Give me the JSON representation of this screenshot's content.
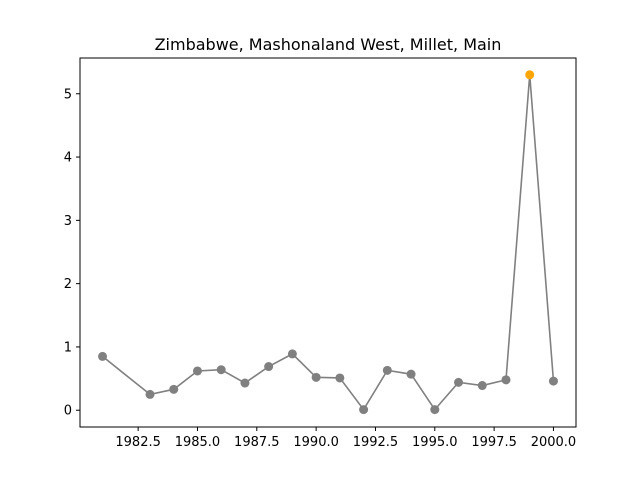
{
  "chart_data": {
    "type": "line",
    "title": "Zimbabwe, Mashonaland West, Millet, Main",
    "xlabel": "",
    "ylabel": "",
    "xlim": [
      1980.05,
      2000.95
    ],
    "ylim": [
      -0.265,
      5.565
    ],
    "x_ticks": [
      1982.5,
      1985.0,
      1987.5,
      1990.0,
      1992.5,
      1995.0,
      1997.5,
      2000.0
    ],
    "x_tick_labels": [
      "1982.5",
      "1985.0",
      "1987.5",
      "1990.0",
      "1992.5",
      "1995.0",
      "1997.5",
      "2000.0"
    ],
    "y_ticks": [
      0,
      1,
      2,
      3,
      4,
      5
    ],
    "y_tick_labels": [
      "0",
      "1",
      "2",
      "3",
      "4",
      "5"
    ],
    "grid": false,
    "series": [
      {
        "x": [
          1981,
          1983,
          1984,
          1985,
          1986,
          1987,
          1988,
          1989,
          1990,
          1991,
          1992,
          1993,
          1994,
          1995,
          1996,
          1997,
          1998,
          1999,
          2000
        ],
        "values": [
          0.85,
          0.25,
          0.33,
          0.62,
          0.64,
          0.43,
          0.69,
          0.89,
          0.52,
          0.51,
          0.01,
          0.63,
          0.57,
          0.01,
          0.44,
          0.39,
          0.48,
          5.3,
          0.46
        ],
        "color": "#808080",
        "highlight_index": 17,
        "highlight_color": "#FFA500"
      }
    ]
  }
}
